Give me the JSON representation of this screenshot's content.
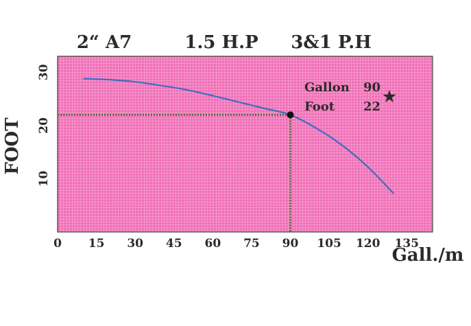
{
  "header": {
    "model": "2“ A7",
    "power": "1.5 H.P",
    "phase": "3&1 P.H"
  },
  "annotation": {
    "gallon_label": "Gallon",
    "gallon_value": "90",
    "foot_label": "Foot",
    "foot_value": "22",
    "marker": "★"
  },
  "colors": {
    "plot_background": "#f06fb7",
    "grid": "#ffffff",
    "curve": "#3a6fc2",
    "guide": "#4a7a3a",
    "point": "#111111",
    "text": "#2b2b2b"
  },
  "chart_data": {
    "type": "line",
    "title": "",
    "xlabel": "Gall./m",
    "ylabel": "FOOT",
    "xlim": [
      0,
      145
    ],
    "ylim": [
      0,
      33
    ],
    "x_ticks": [
      "0",
      "15",
      "30",
      "45",
      "60",
      "75",
      "90",
      "105",
      "120",
      "135"
    ],
    "y_ticks": [
      "10",
      "20",
      "30"
    ],
    "grid": true,
    "series": [
      {
        "x": [
          10,
          20,
          30,
          40,
          50,
          60,
          70,
          80,
          90,
          100,
          110,
          120,
          130
        ],
        "values": [
          28.8,
          28.6,
          28.2,
          27.5,
          26.7,
          25.6,
          24.4,
          23.2,
          22,
          19.5,
          16.3,
          12.2,
          7.2
        ]
      }
    ],
    "highlight_point": {
      "x": 90,
      "y": 22
    },
    "x_tick_values": [
      0,
      15,
      30,
      45,
      60,
      75,
      90,
      105,
      120,
      135
    ],
    "y_tick_values": [
      10,
      20,
      30
    ]
  }
}
